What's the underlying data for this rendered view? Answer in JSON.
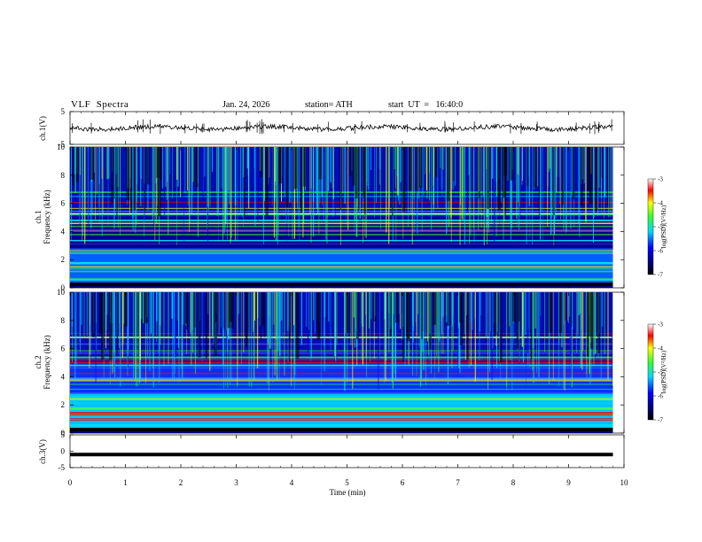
{
  "header": {
    "title": "VLF  Spectra",
    "date": "Jan. 24, 2026",
    "station": "station= ATH",
    "start": "start  UT  =   16:40:0"
  },
  "chart_data": [
    {
      "type": "line",
      "panel": "ch1-waveform",
      "ylabel": "ch.1(V)",
      "ylim": [
        -5,
        5
      ],
      "yticks": [
        "5",
        "-5"
      ],
      "xlim": [
        0,
        10
      ],
      "note_level": 0,
      "series": [
        {
          "values_summary": "noisy trace around 0 V with spikes"
        }
      ]
    },
    {
      "type": "heatmap",
      "panel": "ch1-spectrogram",
      "ylabel": "ch.1\nFrequency  (kHz)",
      "ylim": [
        0,
        10
      ],
      "yticks": [
        "0",
        "2",
        "4",
        "6",
        "8",
        "10"
      ],
      "xlim": [
        0,
        9.8
      ],
      "colorbar": {
        "label": "log(PSD)(V²/Hz)",
        "range": [
          -7,
          -3
        ],
        "ticks": [
          "-3",
          "-4",
          "-5",
          "-6",
          "-7"
        ]
      }
    },
    {
      "type": "heatmap",
      "panel": "ch2-spectrogram",
      "ylabel": "ch.2\nFrequency  (kHz)",
      "ylim": [
        0,
        10
      ],
      "yticks": [
        "0",
        "2",
        "4",
        "6",
        "8",
        "10"
      ],
      "xlim": [
        0,
        9.8
      ],
      "colorbar": {
        "label": "log(PSD)(V²/Hz)",
        "range": [
          -7,
          -3
        ],
        "ticks": [
          "-3",
          "-4",
          "-5",
          "-6",
          "-7"
        ]
      }
    },
    {
      "type": "line",
      "panel": "ch3-waveform",
      "ylabel": "ch.3(V)",
      "ylim": [
        -5,
        5
      ],
      "yticks": [
        "5",
        "0",
        "-5"
      ],
      "xlim": [
        0,
        10
      ],
      "series": [
        {
          "values_summary": "flat line near -2 V"
        }
      ],
      "xlabel": "Time  (min)",
      "xticks": [
        "0",
        "1",
        "2",
        "3",
        "4",
        "5",
        "6",
        "7",
        "8",
        "9",
        "10"
      ]
    }
  ],
  "colors": {
    "deep": "#00007a",
    "blue": "#0000ff",
    "cyan": "#00e0ff",
    "green": "#40ff40",
    "yellow": "#ffff00",
    "red": "#ff0000"
  }
}
